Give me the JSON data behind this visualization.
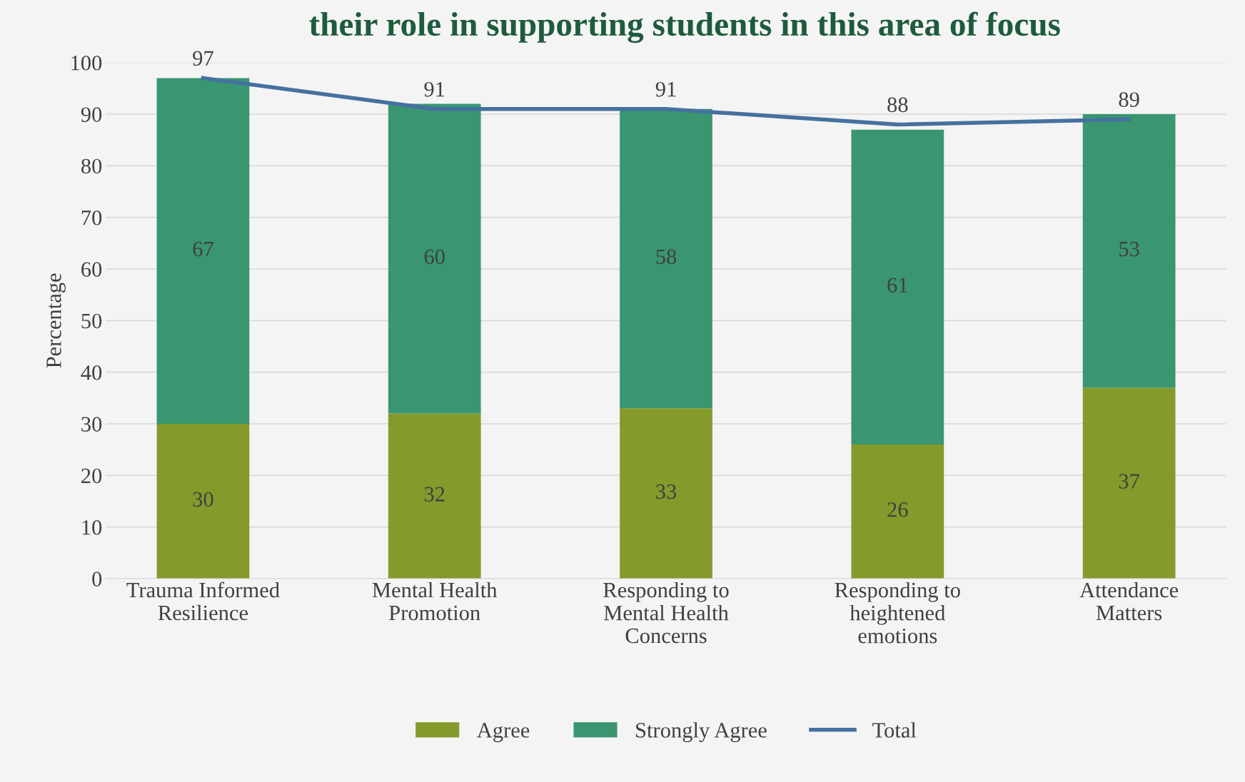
{
  "chart_data": {
    "type": "bar",
    "title": "their role in supporting students in this area of focus",
    "ylabel": "Percentage",
    "categories": [
      "Trauma Informed\nResilience",
      "Mental Health\nPromotion",
      "Responding to\nMental Health\nConcerns",
      "Responding to\nheightened\nemotions",
      "Attendance\nMatters"
    ],
    "stacked": true,
    "data_labels": true,
    "grid": "y",
    "legend": "bottom",
    "ylim": [
      0,
      100
    ],
    "yticks": [
      0,
      10,
      20,
      30,
      40,
      50,
      60,
      70,
      80,
      90,
      100
    ],
    "series": [
      {
        "name": "Agree",
        "color": "#849a2b",
        "values": [
          30,
          32,
          33,
          26,
          37
        ]
      },
      {
        "name": "Strongly Agree",
        "color": "#3a9670",
        "values": [
          67,
          60,
          58,
          61,
          53
        ]
      },
      {
        "name": "Total",
        "type": "line",
        "color": "#4571a0",
        "values": [
          97,
          91,
          91,
          88,
          89
        ]
      }
    ]
  }
}
